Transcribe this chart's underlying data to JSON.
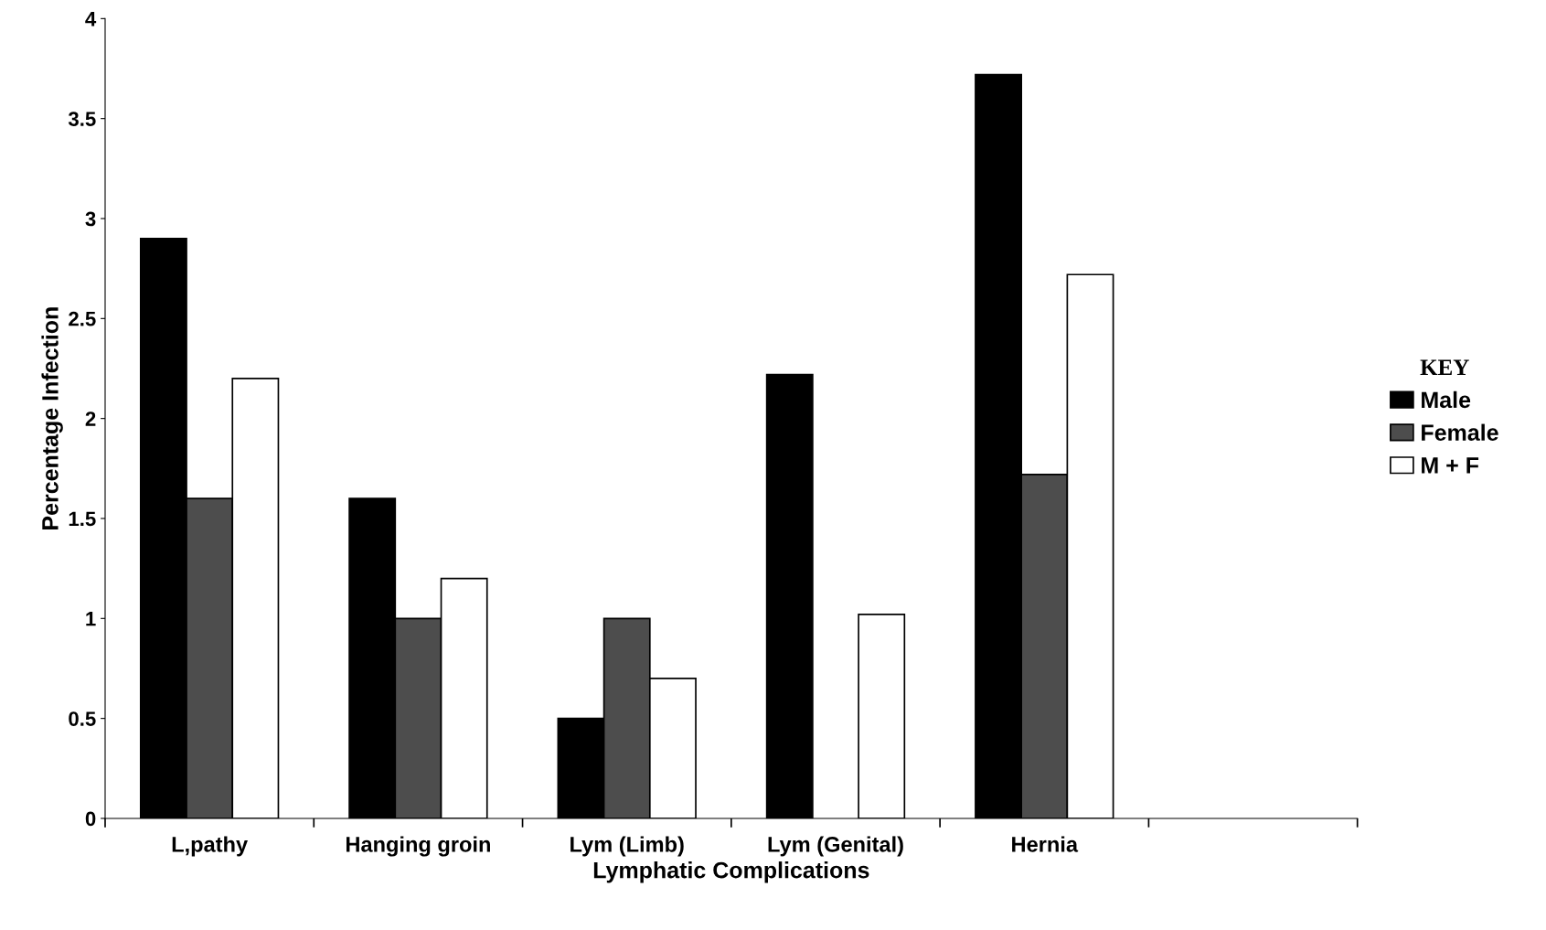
{
  "chart_data": {
    "type": "bar",
    "xlabel": "Lymphatic Complications",
    "ylabel": "Percentage Infection",
    "legend_title": "KEY",
    "legend": "right",
    "grid": false,
    "categories": [
      "L,pathy",
      "Hanging groin",
      "Lym (Limb)",
      "Lym (Genital)",
      "Hernia",
      null
    ],
    "series": [
      {
        "name": "Male",
        "color": "#000000",
        "values": [
          2.9,
          1.6,
          0.5,
          2.22,
          3.72,
          null
        ]
      },
      {
        "name": "Female",
        "color": "#4d4d4d",
        "values": [
          1.6,
          1.0,
          1.0,
          null,
          1.72,
          null
        ]
      },
      {
        "name": "M + F",
        "color": "#ffffff",
        "values": [
          2.2,
          1.2,
          0.7,
          1.02,
          2.72,
          null
        ]
      }
    ],
    "ylim": [
      0,
      4
    ],
    "yticks": [
      0,
      0.5,
      1,
      1.5,
      2,
      2.5,
      3,
      3.5,
      4
    ]
  }
}
